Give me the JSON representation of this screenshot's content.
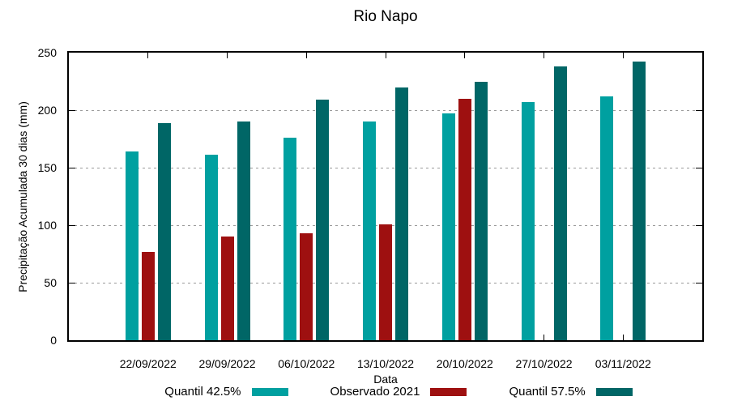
{
  "figure": {
    "background": "#ffffff",
    "axis_color": "#000000",
    "grid_color": "#9a9a9a",
    "text_color": "#000000"
  },
  "chart_data": {
    "type": "bar",
    "title": "Rio Napo",
    "xlabel": "Data",
    "ylabel": "Precipitação Acumulada 30 dias (mm)",
    "ylim": [
      0,
      250
    ],
    "yticks": [
      0,
      50,
      100,
      150,
      200,
      250
    ],
    "grid": "horizontal dotted lines at y ticks",
    "legend_position": "bottom center, below x-axis label",
    "categories": [
      "22/09/2022",
      "29/09/2022",
      "06/10/2022",
      "13/10/2022",
      "20/10/2022",
      "27/10/2022",
      "03/11/2022"
    ],
    "series": [
      {
        "name": "Quantil 42.5%",
        "color": "#00A0A0",
        "values": [
          164,
          161,
          176,
          190,
          197,
          207,
          212
        ]
      },
      {
        "name": "Observado 2021",
        "color": "#9E1010",
        "values": [
          77,
          90,
          93,
          101,
          210,
          null,
          null
        ]
      },
      {
        "name": "Quantil 57.5%",
        "color": "#006666",
        "values": [
          189,
          190,
          209,
          220,
          225,
          238,
          242
        ]
      }
    ]
  }
}
